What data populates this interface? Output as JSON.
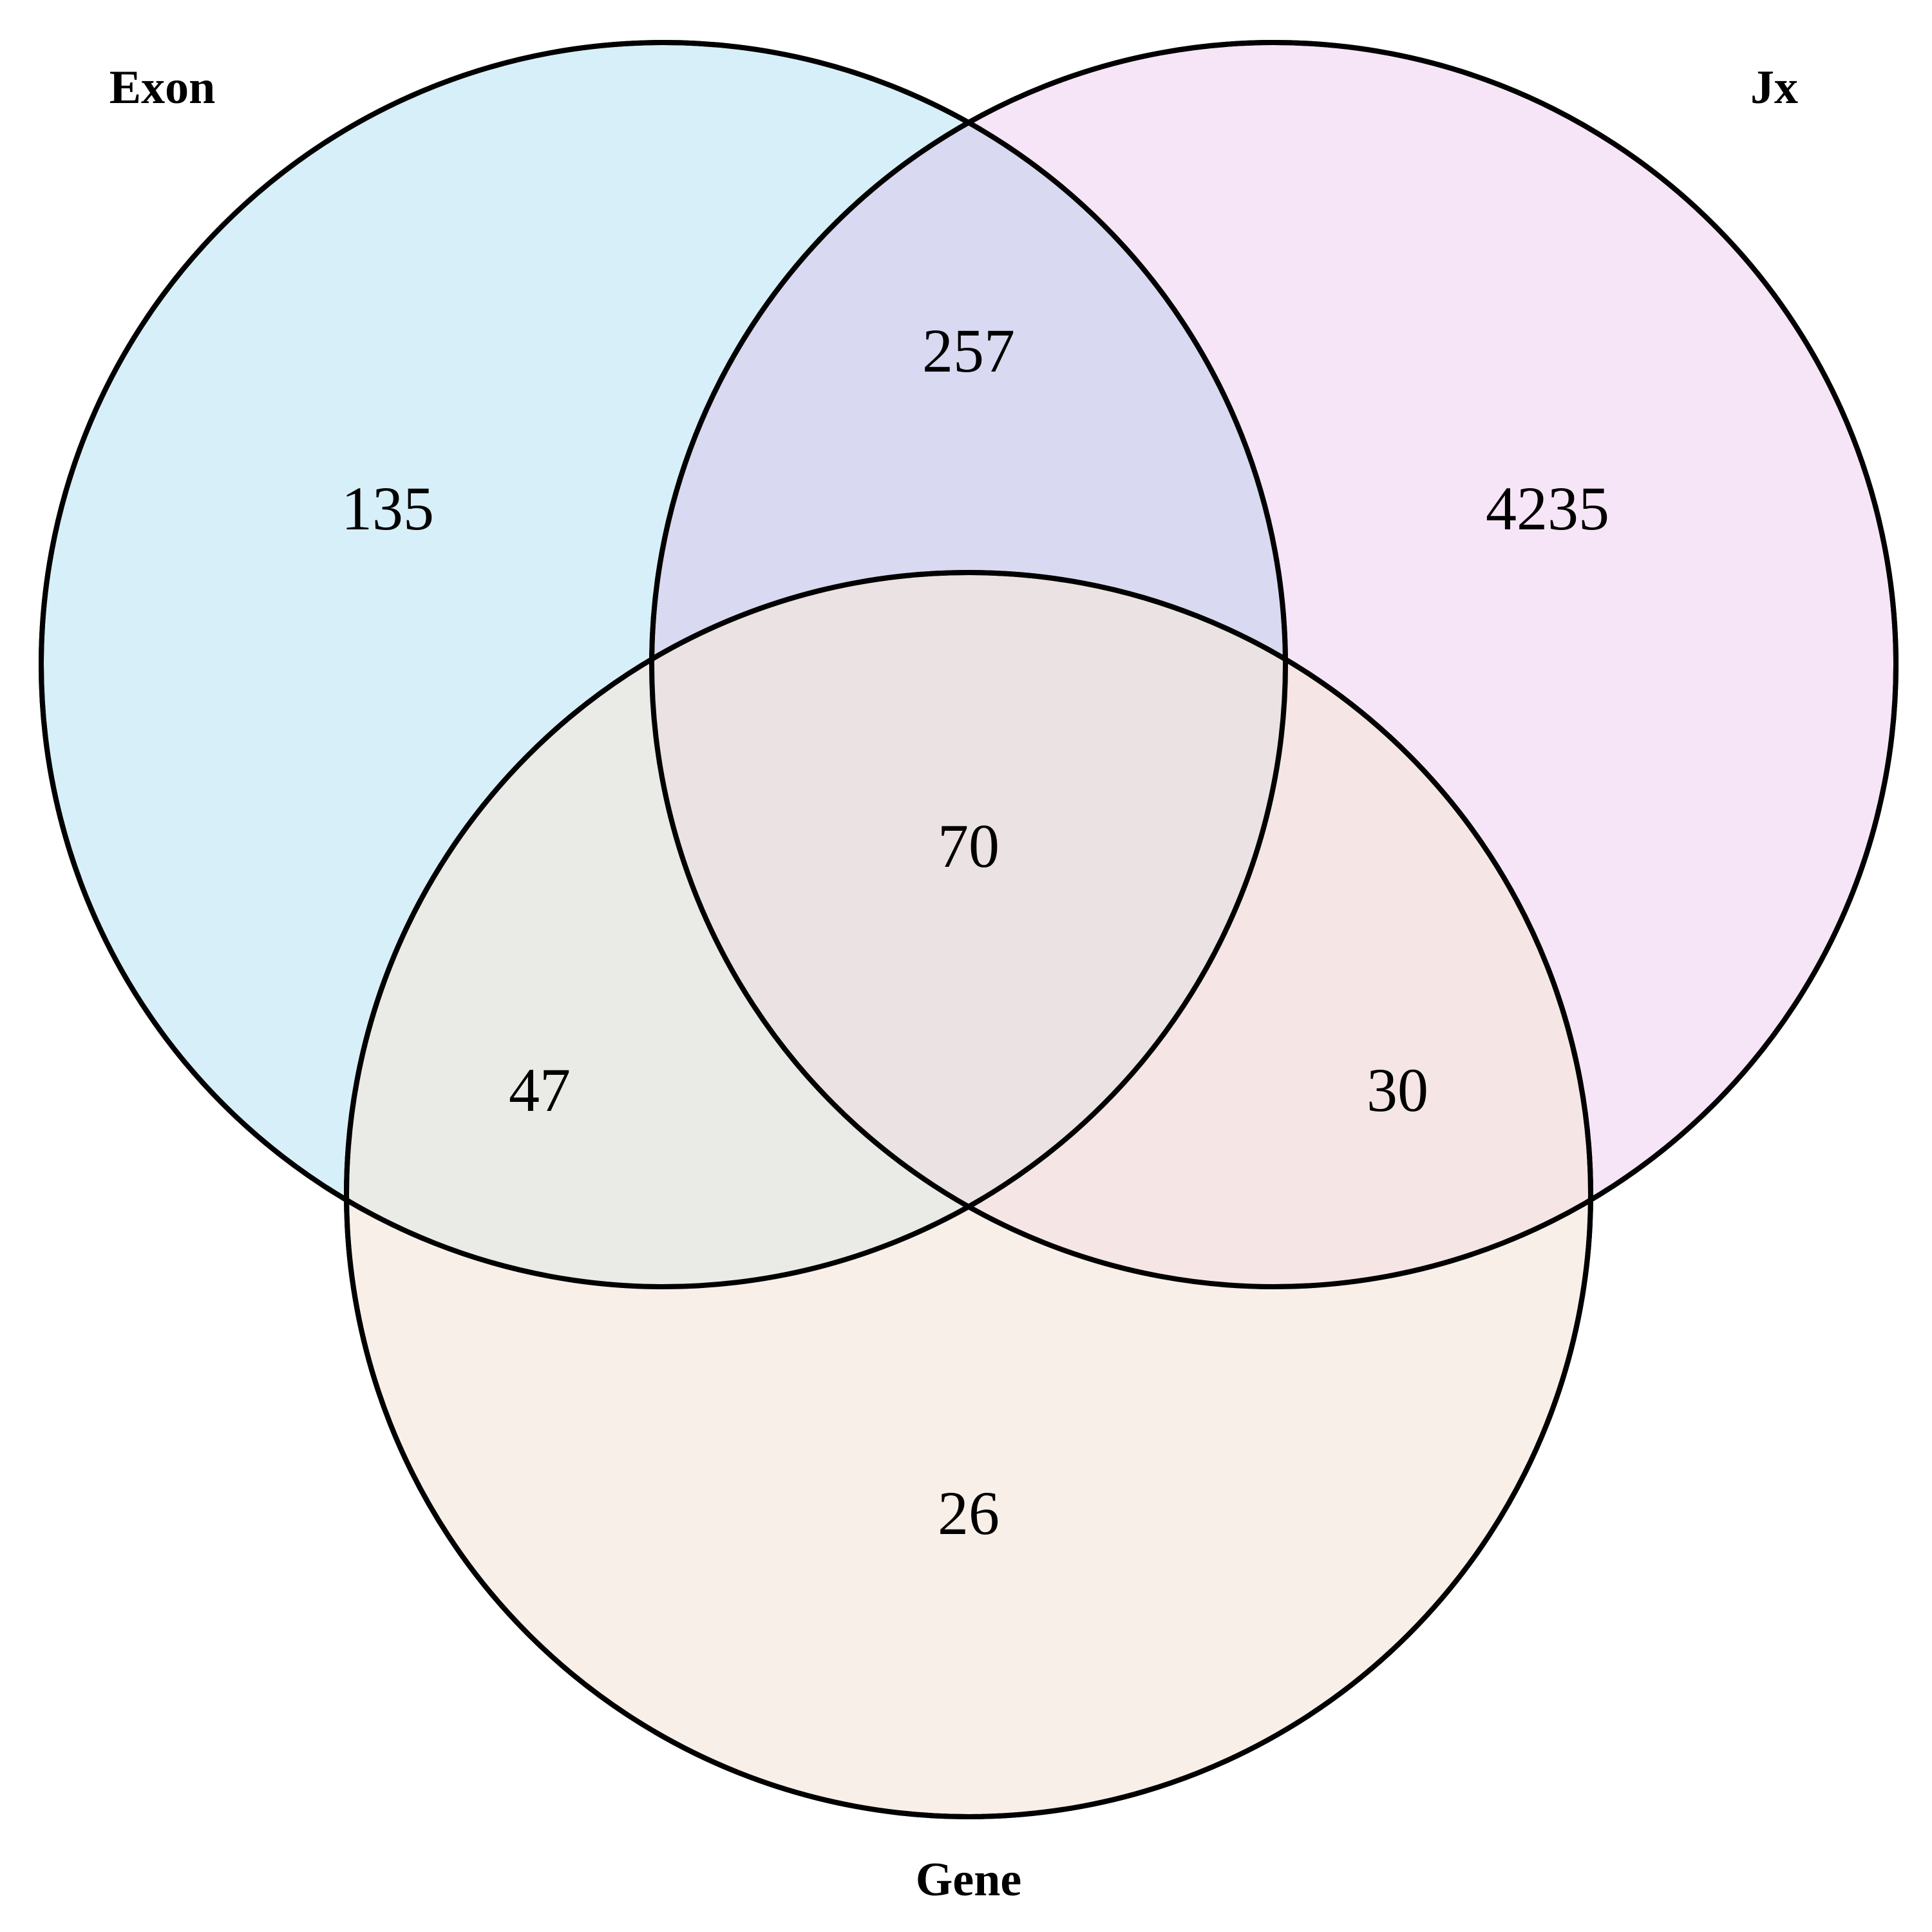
{
  "sets": [
    {
      "name": "Exon",
      "color": "#87CEEB",
      "opacity": 0.33
    },
    {
      "name": "Jx",
      "color": "#DDA0DD",
      "opacity": 0.28
    },
    {
      "name": "Gene",
      "color": "#F5E6DC",
      "opacity": 0.65
    }
  ],
  "regions": {
    "exon_only": "135",
    "jx_only": "4235",
    "gene_only": "26",
    "exon_jx": "257",
    "exon_gene": "47",
    "jx_gene": "30",
    "all": "70"
  },
  "outline_color": "#000000"
}
